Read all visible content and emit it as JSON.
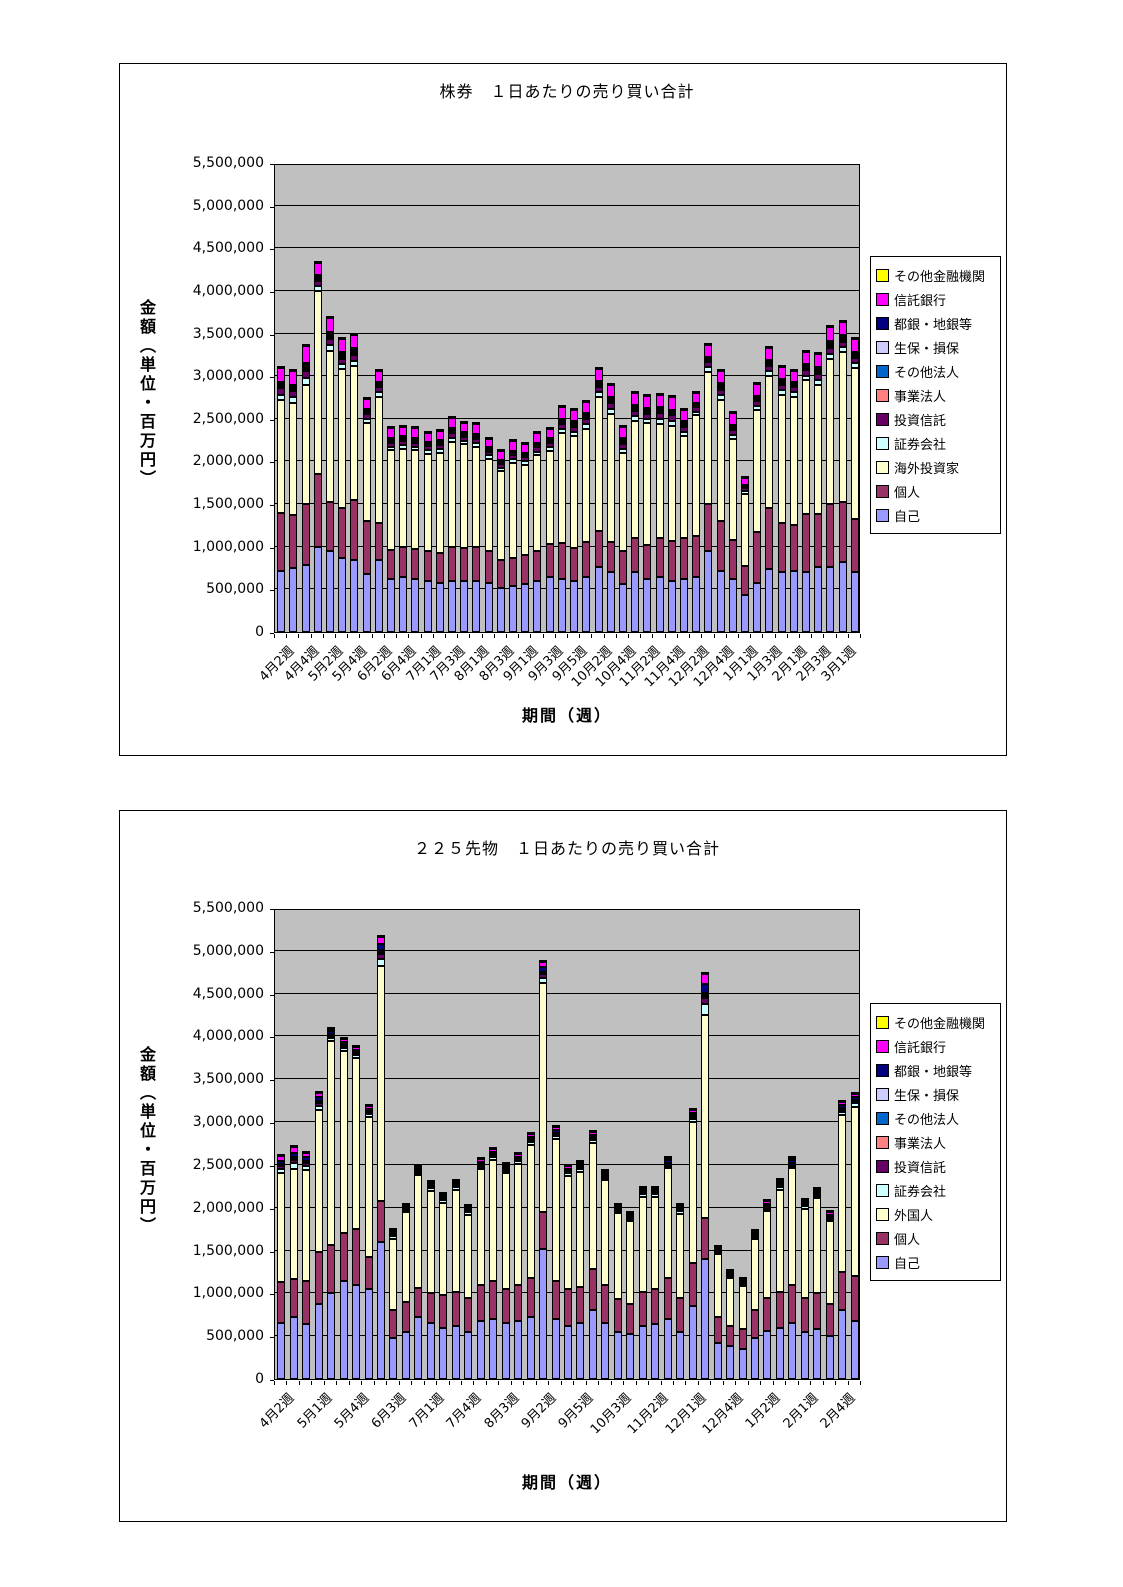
{
  "unit": "百万円",
  "colors": {
    "plot_background": "#C0C0C0",
    "page_background": "#FFFFFF",
    "axis_and_border": "#000000"
  },
  "chart_data": [
    {
      "type": "bar",
      "stacked": true,
      "title": "株券　１日あたりの売り買い合計",
      "xlabel": "期間（週）",
      "ylabel": "金額（単位・百万円）",
      "ylim": [
        0,
        5500000
      ],
      "ytick_step": 500000,
      "grid": true,
      "legend_position": "right",
      "n_bars": 48,
      "x_tick_every": 2,
      "x_tick_labels": [
        "4月2週",
        "4月4週",
        "5月2週",
        "5月4週",
        "6月2週",
        "6月4週",
        "7月1週",
        "7月3週",
        "8月1週",
        "8月3週",
        "9月1週",
        "9月3週",
        "9月5週",
        "10月2週",
        "10月4週",
        "11月2週",
        "11月4週",
        "12月2週",
        "12月4週",
        "1月1週",
        "1月3週",
        "2月1週",
        "2月3週",
        "3月1週"
      ],
      "note": "stacked weekly averages; series without explicit values are minor components whose height = share_of_minor_total × minor_total",
      "minor_total": [
        400000,
        390000,
        480000,
        350000,
        400000,
        370000,
        380000,
        300000,
        320000,
        270000,
        270000,
        270000,
        260000,
        270000,
        290000,
        270000,
        280000,
        250000,
        240000,
        270000,
        260000,
        280000,
        280000,
        320000,
        320000,
        340000,
        340000,
        360000,
        320000,
        340000,
        330000,
        360000,
        350000,
        320000,
        280000,
        330000,
        360000,
        320000,
        200000,
        320000,
        350000,
        340000,
        320000,
        350000,
        380000,
        400000,
        370000,
        350000
      ],
      "series": [
        {
          "name": "自己",
          "color": "#9999FF",
          "values": [
            720000,
            750000,
            780000,
            1000000,
            950000,
            870000,
            850000,
            680000,
            850000,
            620000,
            640000,
            620000,
            600000,
            580000,
            600000,
            600000,
            600000,
            580000,
            520000,
            540000,
            560000,
            600000,
            640000,
            620000,
            600000,
            640000,
            760000,
            700000,
            560000,
            700000,
            620000,
            640000,
            600000,
            620000,
            640000,
            950000,
            720000,
            620000,
            430000,
            580000,
            740000,
            700000,
            720000,
            700000,
            760000,
            760000,
            820000,
            700000
          ]
        },
        {
          "name": "個人",
          "color": "#993366",
          "values": [
            670000,
            620000,
            720000,
            850000,
            580000,
            580000,
            700000,
            620000,
            430000,
            340000,
            360000,
            350000,
            350000,
            350000,
            400000,
            380000,
            400000,
            370000,
            320000,
            330000,
            340000,
            350000,
            390000,
            420000,
            380000,
            410000,
            420000,
            350000,
            390000,
            400000,
            400000,
            460000,
            470000,
            480000,
            480000,
            550000,
            580000,
            460000,
            340000,
            590000,
            710000,
            580000,
            530000,
            680000,
            620000,
            740000,
            700000,
            620000
          ]
        },
        {
          "name": "海外投資家",
          "color": "#FFFFCC",
          "values": [
            1330000,
            1320000,
            1400000,
            2150000,
            1770000,
            1630000,
            1570000,
            1150000,
            1480000,
            1170000,
            1150000,
            1160000,
            1140000,
            1170000,
            1230000,
            1220000,
            1170000,
            1080000,
            1050000,
            1110000,
            1060000,
            1120000,
            1090000,
            1290000,
            1320000,
            1330000,
            1580000,
            1510000,
            1150000,
            1380000,
            1430000,
            1340000,
            1350000,
            1200000,
            1420000,
            1550000,
            1420000,
            1180000,
            850000,
            1430000,
            1550000,
            1500000,
            1510000,
            1570000,
            1520000,
            1700000,
            1760000,
            1780000
          ]
        },
        {
          "name": "証券会社",
          "color": "#CCFFFF",
          "share_of_minor_total": 0.16
        },
        {
          "name": "投資信託",
          "color": "#660066",
          "share_of_minor_total": 0.18
        },
        {
          "name": "事業法人",
          "color": "#FF8080",
          "share_of_minor_total": 0.05
        },
        {
          "name": "その他法人",
          "color": "#0066CC",
          "share_of_minor_total": 0.04
        },
        {
          "name": "生保・損保",
          "color": "#CCCCFF",
          "share_of_minor_total": 0.06
        },
        {
          "name": "都銀・地銀等",
          "color": "#000080",
          "share_of_minor_total": 0.05
        },
        {
          "name": "信託銀行",
          "color": "#FF00FF",
          "share_of_minor_total": 0.41
        },
        {
          "name": "その他金融機関",
          "color": "#FFFF00",
          "share_of_minor_total": 0.05
        }
      ]
    },
    {
      "type": "bar",
      "stacked": true,
      "title": "２２５先物　１日あたりの売り買い合計",
      "xlabel": "期間（週）",
      "ylabel": "金額（単位・百万円）",
      "ylim": [
        0,
        5500000
      ],
      "ytick_step": 500000,
      "grid": true,
      "legend_position": "right",
      "n_bars": 47,
      "x_tick_every": 3,
      "x_tick_labels": [
        "4月2週",
        "5月1週",
        "5月4週",
        "6月3週",
        "7月1週",
        "7月4週",
        "8月3週",
        "9月2週",
        "9月5週",
        "10月3週",
        "11月2週",
        "12月1週",
        "12月4週",
        "1月2週",
        "2月1週",
        "2月4週"
      ],
      "note": "stacked weekly averages; series without explicit values are minor components whose height = share_of_minor_total × minor_total",
      "minor_total": [
        210000,
        270000,
        210000,
        210000,
        150000,
        150000,
        130000,
        130000,
        360000,
        100000,
        90000,
        110000,
        110000,
        100000,
        110000,
        100000,
        120000,
        130000,
        120000,
        120000,
        140000,
        260000,
        150000,
        120000,
        120000,
        130000,
        120000,
        100000,
        100000,
        110000,
        110000,
        130000,
        110000,
        150000,
        500000,
        90000,
        80000,
        80000,
        90000,
        120000,
        120000,
        130000,
        110000,
        120000,
        110000,
        160000,
        160000
      ],
      "series": [
        {
          "name": "自己",
          "color": "#9999FF",
          "values": [
            650000,
            720000,
            640000,
            880000,
            1000000,
            1150000,
            1100000,
            1050000,
            1600000,
            480000,
            550000,
            720000,
            650000,
            600000,
            620000,
            550000,
            680000,
            700000,
            650000,
            680000,
            720000,
            1520000,
            700000,
            620000,
            650000,
            800000,
            650000,
            550000,
            520000,
            620000,
            640000,
            700000,
            550000,
            850000,
            1400000,
            420000,
            380000,
            350000,
            480000,
            560000,
            600000,
            650000,
            550000,
            580000,
            500000,
            800000,
            680000
          ]
        },
        {
          "name": "個人",
          "color": "#993366",
          "values": [
            480000,
            450000,
            510000,
            600000,
            560000,
            550000,
            650000,
            370000,
            480000,
            320000,
            350000,
            340000,
            350000,
            380000,
            400000,
            400000,
            420000,
            450000,
            400000,
            420000,
            460000,
            430000,
            450000,
            430000,
            430000,
            480000,
            450000,
            380000,
            360000,
            400000,
            410000,
            480000,
            400000,
            500000,
            480000,
            300000,
            240000,
            230000,
            320000,
            390000,
            420000,
            450000,
            400000,
            420000,
            380000,
            450000,
            520000
          ]
        },
        {
          "name": "外国人",
          "color": "#FFFFCC",
          "values": [
            1270000,
            1280000,
            1290000,
            1660000,
            2390000,
            2130000,
            2000000,
            1640000,
            2740000,
            840000,
            1050000,
            1320000,
            1200000,
            1080000,
            1190000,
            970000,
            1350000,
            1410000,
            1350000,
            1410000,
            1550000,
            2670000,
            1650000,
            1320000,
            1340000,
            1480000,
            1220000,
            1010000,
            960000,
            1110000,
            1080000,
            1280000,
            980000,
            1650000,
            2370000,
            740000,
            560000,
            510000,
            840000,
            1010000,
            1190000,
            1360000,
            1040000,
            1110000,
            960000,
            1830000,
            1980000
          ]
        },
        {
          "name": "証券会社",
          "color": "#CCFFFF",
          "share_of_minor_total": 0.25
        },
        {
          "name": "投資信託",
          "color": "#660066",
          "share_of_minor_total": 0.15
        },
        {
          "name": "事業法人",
          "color": "#FF8080",
          "share_of_minor_total": 0.05
        },
        {
          "name": "その他法人",
          "color": "#0066CC",
          "share_of_minor_total": 0.03
        },
        {
          "name": "生保・損保",
          "color": "#CCCCFF",
          "share_of_minor_total": 0.04
        },
        {
          "name": "都銀・地銀等",
          "color": "#000080",
          "share_of_minor_total": 0.2
        },
        {
          "name": "信託銀行",
          "color": "#FF00FF",
          "share_of_minor_total": 0.23
        },
        {
          "name": "その他金融機関",
          "color": "#FFFF00",
          "share_of_minor_total": 0.05
        }
      ]
    }
  ]
}
